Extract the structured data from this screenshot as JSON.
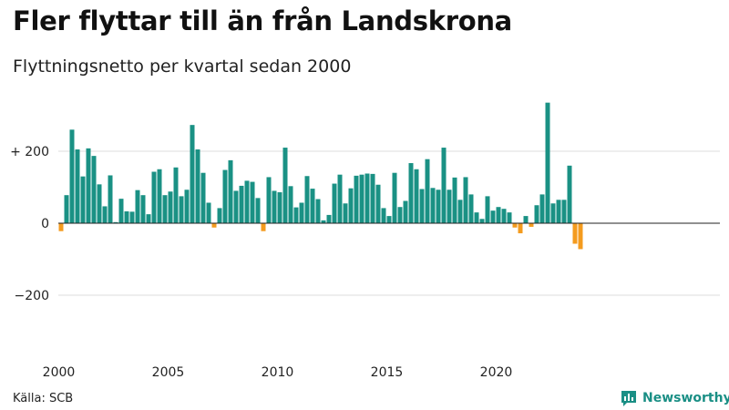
{
  "title": "Fler flyttar till än från Landskrona",
  "subtitle": "Flyttningsnetto per kvartal sedan 2000",
  "source": "Källa: SCB",
  "brand": "Newsworthy",
  "colors": {
    "positive": "#1a9184",
    "negative": "#f49b1e",
    "brand": "#1a8f85"
  },
  "chart_data": {
    "type": "bar",
    "x_start": "2000 Q1",
    "ylim": [
      -360,
      340
    ],
    "yticks": [
      {
        "value": 200,
        "label": "+ 200"
      },
      {
        "value": 0,
        "label": "0"
      },
      {
        "value": -200,
        "label": "−200"
      }
    ],
    "xticks": [
      {
        "index": 0,
        "label": "2000"
      },
      {
        "index": 20,
        "label": "2005"
      },
      {
        "index": 40,
        "label": "2010"
      },
      {
        "index": 60,
        "label": "2015"
      },
      {
        "index": 80,
        "label": "2020"
      }
    ],
    "values": [
      -22,
      78,
      260,
      205,
      130,
      208,
      187,
      108,
      47,
      133,
      3,
      68,
      33,
      32,
      92,
      78,
      25,
      143,
      150,
      78,
      88,
      155,
      75,
      93,
      273,
      205,
      140,
      57,
      -12,
      42,
      148,
      175,
      90,
      104,
      118,
      115,
      70,
      -22,
      128,
      90,
      86,
      210,
      103,
      44,
      57,
      131,
      96,
      67,
      8,
      23,
      110,
      135,
      55,
      97,
      132,
      135,
      138,
      137,
      107,
      42,
      20,
      140,
      45,
      62,
      167,
      150,
      95,
      178,
      98,
      93,
      210,
      93,
      127,
      65,
      128,
      80,
      30,
      12,
      75,
      35,
      45,
      40,
      30,
      -12,
      -28,
      20,
      -10,
      50,
      80,
      335,
      55,
      65,
      65,
      160,
      -57,
      -72
    ]
  }
}
